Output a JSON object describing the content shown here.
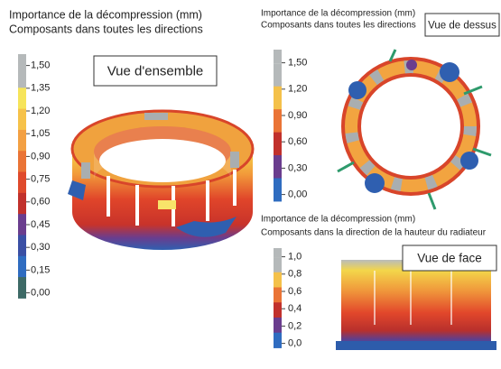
{
  "panels": [
    {
      "title": [
        "Importance de la décompression (mm)",
        "Composants dans toutes les directions"
      ],
      "legend": [
        "1,50",
        "1,35",
        "1,20",
        "1,05",
        "0,90",
        "0,75",
        "0,60",
        "0,45",
        "0,30",
        "0,15",
        "0,00"
      ],
      "view_label": "Vue d'ensemble"
    },
    {
      "title": [
        "Importance de la décompression (mm)",
        "Composants dans toutes les directions"
      ],
      "legend": [
        "1,50",
        "1,20",
        "0,90",
        "0,60",
        "0,30",
        "0,00"
      ],
      "view_label": "Vue de dessus"
    },
    {
      "title": [
        "Importance de la décompression (mm)",
        "Composants dans la direction de la hauteur du radiateur"
      ],
      "legend": [
        "1,0",
        "0,8",
        "0,6",
        "0,4",
        "0,2",
        "0,0"
      ],
      "view_label": "Vue de face"
    }
  ]
}
